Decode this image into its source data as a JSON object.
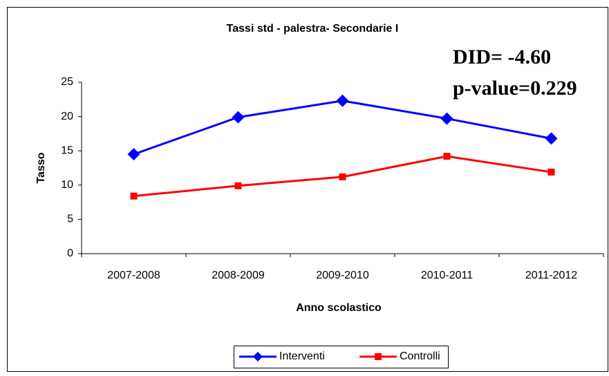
{
  "chart_data": {
    "type": "line",
    "title": "Tassi std - palestra- Secondarie I",
    "x_label": "Anno scolastico",
    "y_label": "Tasso",
    "annotations": [
      "DID= -4.60",
      "p-value=0.229"
    ],
    "categories": [
      "2007-2008",
      "2008-2009",
      "2009-2010",
      "2010-2011",
      "2011-2012"
    ],
    "series": [
      {
        "name": "Interventi",
        "color": "#0000ff",
        "marker": "diamond",
        "values": [
          14.5,
          19.9,
          22.3,
          19.7,
          16.8
        ]
      },
      {
        "name": "Controlli",
        "color": "#ff0000",
        "marker": "square",
        "values": [
          8.4,
          9.9,
          11.2,
          14.2,
          11.9
        ]
      }
    ],
    "ylim": [
      0,
      25
    ],
    "yticks": [
      0,
      5,
      10,
      15,
      20,
      25
    ],
    "grid": false,
    "legend": "bottom"
  }
}
